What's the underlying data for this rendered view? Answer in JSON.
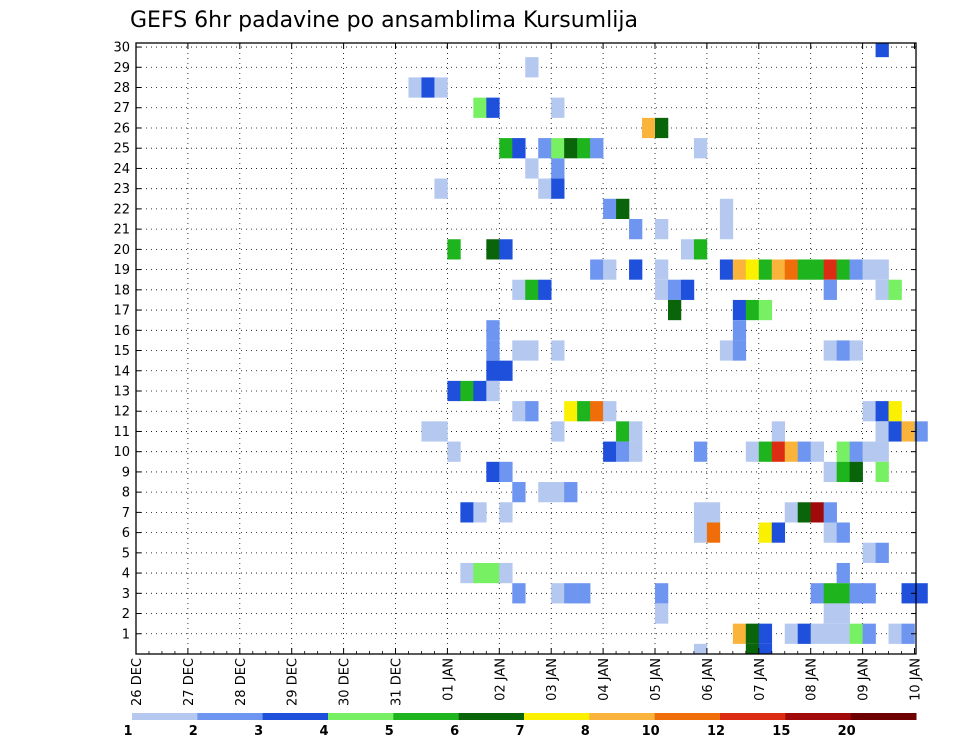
{
  "chart_data": {
    "type": "heatmap",
    "title": "GEFS 6hr padavine po ansamblima Kursumlija",
    "y_tick_labels": [
      "1",
      "2",
      "3",
      "4",
      "5",
      "6",
      "7",
      "8",
      "9",
      "10",
      "11",
      "12",
      "13",
      "14",
      "15",
      "16",
      "17",
      "18",
      "19",
      "20",
      "21",
      "22",
      "23",
      "24",
      "25",
      "26",
      "27",
      "28",
      "29",
      "30"
    ],
    "x_tick_labels": [
      "26 DEC",
      "27 DEC",
      "28 DEC",
      "29 DEC",
      "30 DEC",
      "31 DEC",
      "01 JAN",
      "02 JAN",
      "03 JAN",
      "04 JAN",
      "05 JAN",
      "06 JAN",
      "07 JAN",
      "08 JAN",
      "09 JAN",
      "10 JAN"
    ],
    "colorbar_labels": [
      "1",
      "2",
      "3",
      "4",
      "5",
      "6",
      "7",
      "8",
      "10",
      "12",
      "15",
      "20"
    ],
    "colorbar_colors": [
      "#b4c8f0",
      "#6e96f0",
      "#1e50dc",
      "#78f064",
      "#1eb41e",
      "#0a640a",
      "#faf000",
      "#fab43c",
      "#f06e0a",
      "#dc2d14",
      "#a00a0a",
      "#6e0000"
    ],
    "cells_description": "each cell = [time step (6h, 0 = 26 DEC 00z), member, colour class index 1-12]",
    "cells": [
      [
        21,
        28,
        1
      ],
      [
        22,
        28,
        3
      ],
      [
        23,
        28,
        1
      ],
      [
        30,
        29,
        1
      ],
      [
        26,
        27,
        4
      ],
      [
        27,
        27,
        3
      ],
      [
        32,
        27,
        1
      ],
      [
        39,
        26,
        8
      ],
      [
        40,
        26,
        6
      ],
      [
        28,
        25,
        5
      ],
      [
        29,
        25,
        3
      ],
      [
        31,
        25,
        2
      ],
      [
        32,
        25,
        4
      ],
      [
        33,
        25,
        6
      ],
      [
        34,
        25,
        5
      ],
      [
        35,
        25,
        2
      ],
      [
        43,
        25,
        1
      ],
      [
        30,
        24,
        1
      ],
      [
        32,
        24,
        2
      ],
      [
        31,
        23,
        1
      ],
      [
        32,
        23,
        3
      ],
      [
        23,
        23,
        1
      ],
      [
        36,
        22,
        2
      ],
      [
        37,
        22,
        6
      ],
      [
        38,
        21,
        2
      ],
      [
        40,
        21,
        1
      ],
      [
        45,
        21,
        1
      ],
      [
        45,
        22,
        1
      ],
      [
        24,
        20,
        5
      ],
      [
        27,
        20,
        6
      ],
      [
        28,
        20,
        3
      ],
      [
        42,
        20,
        1
      ],
      [
        43,
        20,
        5
      ],
      [
        35,
        19,
        2
      ],
      [
        36,
        19,
        1
      ],
      [
        38,
        19,
        3
      ],
      [
        40,
        19,
        1
      ],
      [
        45,
        19,
        3
      ],
      [
        46,
        19,
        8
      ],
      [
        47,
        19,
        7
      ],
      [
        48,
        19,
        5
      ],
      [
        49,
        19,
        8
      ],
      [
        50,
        19,
        9
      ],
      [
        51,
        19,
        5
      ],
      [
        52,
        19,
        5
      ],
      [
        53,
        19,
        10
      ],
      [
        54,
        19,
        5
      ],
      [
        55,
        19,
        2
      ],
      [
        56,
        19,
        1
      ],
      [
        57,
        19,
        1
      ],
      [
        29,
        18,
        1
      ],
      [
        30,
        18,
        5
      ],
      [
        31,
        18,
        3
      ],
      [
        40,
        18,
        1
      ],
      [
        41,
        18,
        2
      ],
      [
        42,
        18,
        3
      ],
      [
        53,
        18,
        2
      ],
      [
        57,
        18,
        1
      ],
      [
        58,
        18,
        4
      ],
      [
        41,
        17,
        6
      ],
      [
        46,
        17,
        3
      ],
      [
        47,
        17,
        5
      ],
      [
        48,
        17,
        4
      ],
      [
        27,
        16,
        2
      ],
      [
        46,
        16,
        2
      ],
      [
        27,
        15,
        2
      ],
      [
        29,
        15,
        1
      ],
      [
        30,
        15,
        1
      ],
      [
        32,
        15,
        1
      ],
      [
        45,
        15,
        1
      ],
      [
        46,
        15,
        2
      ],
      [
        53,
        15,
        1
      ],
      [
        54,
        15,
        2
      ],
      [
        55,
        15,
        1
      ],
      [
        27,
        14,
        3
      ],
      [
        28,
        14,
        3
      ],
      [
        24,
        13,
        3
      ],
      [
        25,
        13,
        5
      ],
      [
        26,
        13,
        3
      ],
      [
        27,
        13,
        1
      ],
      [
        29,
        12,
        1
      ],
      [
        30,
        12,
        2
      ],
      [
        33,
        12,
        7
      ],
      [
        34,
        12,
        5
      ],
      [
        35,
        12,
        9
      ],
      [
        36,
        12,
        1
      ],
      [
        56,
        12,
        1
      ],
      [
        57,
        12,
        3
      ],
      [
        58,
        12,
        7
      ],
      [
        22,
        11,
        1
      ],
      [
        23,
        11,
        1
      ],
      [
        32,
        11,
        1
      ],
      [
        37,
        11,
        5
      ],
      [
        38,
        11,
        1
      ],
      [
        49,
        11,
        1
      ],
      [
        57,
        11,
        1
      ],
      [
        58,
        11,
        3
      ],
      [
        59,
        11,
        8
      ],
      [
        60,
        11,
        2
      ],
      [
        24,
        10,
        1
      ],
      [
        36,
        10,
        3
      ],
      [
        37,
        10,
        2
      ],
      [
        38,
        10,
        1
      ],
      [
        43,
        10,
        2
      ],
      [
        47,
        10,
        1
      ],
      [
        48,
        10,
        5
      ],
      [
        49,
        10,
        10
      ],
      [
        50,
        10,
        8
      ],
      [
        51,
        10,
        2
      ],
      [
        52,
        10,
        1
      ],
      [
        54,
        10,
        4
      ],
      [
        55,
        10,
        2
      ],
      [
        56,
        10,
        1
      ],
      [
        57,
        10,
        1
      ],
      [
        27,
        9,
        3
      ],
      [
        28,
        9,
        2
      ],
      [
        53,
        9,
        1
      ],
      [
        54,
        9,
        5
      ],
      [
        55,
        9,
        6
      ],
      [
        57,
        9,
        4
      ],
      [
        29,
        8,
        2
      ],
      [
        31,
        8,
        1
      ],
      [
        32,
        8,
        1
      ],
      [
        33,
        8,
        2
      ],
      [
        25,
        7,
        3
      ],
      [
        26,
        7,
        1
      ],
      [
        28,
        7,
        1
      ],
      [
        43,
        7,
        1
      ],
      [
        44,
        7,
        1
      ],
      [
        50,
        7,
        1
      ],
      [
        51,
        7,
        6
      ],
      [
        52,
        7,
        11
      ],
      [
        53,
        7,
        2
      ],
      [
        43,
        6,
        1
      ],
      [
        44,
        6,
        9
      ],
      [
        48,
        6,
        7
      ],
      [
        49,
        6,
        3
      ],
      [
        53,
        6,
        1
      ],
      [
        54,
        6,
        2
      ],
      [
        56,
        5,
        1
      ],
      [
        57,
        5,
        2
      ],
      [
        25,
        4,
        1
      ],
      [
        26,
        4,
        4
      ],
      [
        27,
        4,
        4
      ],
      [
        28,
        4,
        1
      ],
      [
        54,
        4,
        2
      ],
      [
        29,
        3,
        2
      ],
      [
        32,
        3,
        1
      ],
      [
        33,
        3,
        2
      ],
      [
        34,
        3,
        2
      ],
      [
        40,
        3,
        2
      ],
      [
        52,
        3,
        2
      ],
      [
        53,
        3,
        5
      ],
      [
        54,
        3,
        5
      ],
      [
        55,
        3,
        2
      ],
      [
        56,
        3,
        2
      ],
      [
        59,
        3,
        3
      ],
      [
        60,
        3,
        3
      ],
      [
        40,
        2,
        1
      ],
      [
        53,
        2,
        1
      ],
      [
        54,
        2,
        1
      ],
      [
        46,
        1,
        8
      ],
      [
        47,
        1,
        6
      ],
      [
        48,
        1,
        3
      ],
      [
        50,
        1,
        1
      ],
      [
        51,
        1,
        3
      ],
      [
        52,
        1,
        1
      ],
      [
        53,
        1,
        1
      ],
      [
        54,
        1,
        1
      ],
      [
        55,
        1,
        4
      ],
      [
        56,
        1,
        2
      ],
      [
        58,
        1,
        1
      ],
      [
        59,
        1,
        2
      ],
      [
        43,
        0,
        1
      ],
      [
        47,
        0,
        6
      ],
      [
        48,
        0,
        3
      ],
      [
        57,
        30,
        3
      ]
    ]
  }
}
